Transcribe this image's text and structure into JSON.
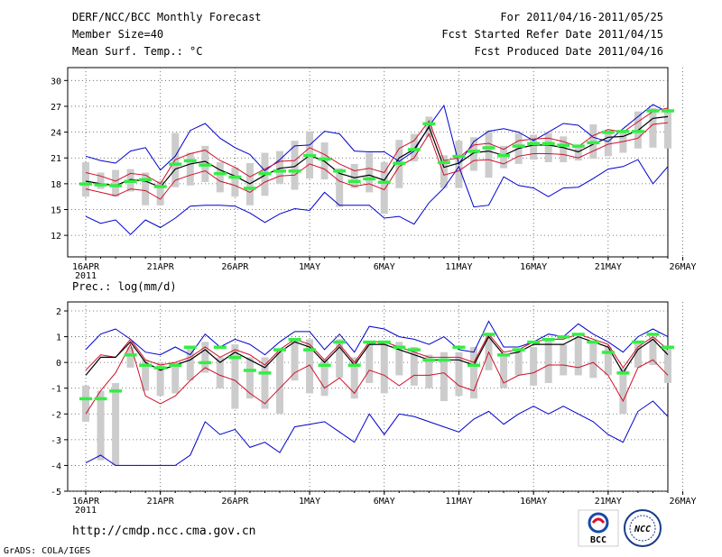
{
  "header": {
    "title": "DERF/NCC/BCC Monthly Forecast",
    "member_size": "Member Size=40",
    "variable_top": "Mean Surf. Temp.: °C",
    "period": "For 2011/04/16-2011/05/25",
    "started": "Fcst Started Refer Date 2011/04/15",
    "produced": "Fcst Produced Date 2011/04/16"
  },
  "footer": {
    "url": "http://cmdp.ncc.cma.gov.cn",
    "credit": "GrADS: COLA/IGES",
    "logo_bcc": "BCC",
    "logo_ncc": "NCC"
  },
  "colors": {
    "ensemble_mean": "#000000",
    "spread": "#d0102a",
    "extreme": "#0000cc",
    "box": "#cccccc",
    "median": "#33ee44"
  },
  "chart_data": [
    {
      "type": "line",
      "title": "Mean Surf. Temp.: °C",
      "xlabel": "",
      "ylabel": "",
      "ylim": [
        9.5,
        31.5
      ],
      "yticks": [
        12,
        15,
        18,
        21,
        24,
        27,
        30
      ],
      "xticks": [
        "16APR",
        "21APR",
        "26APR",
        "1MAY",
        "6MAY",
        "11MAY",
        "16MAY",
        "21MAY",
        "26MAY"
      ],
      "xyear": "2011",
      "days": 40,
      "series": [
        {
          "name": "max",
          "values": [
            14.2,
            13.4,
            13.8,
            12.1,
            13.8,
            12.9,
            14.0,
            15.4,
            15.5,
            15.5,
            15.4,
            14.6,
            13.5,
            14.5,
            15.1,
            14.9,
            17.0,
            15.5,
            15.5,
            15.5,
            14.0,
            14.2,
            13.3,
            15.8,
            17.5,
            20.0,
            15.3,
            15.5,
            18.8,
            17.8,
            17.5,
            16.5,
            17.5,
            17.6,
            18.6,
            19.7,
            20.0,
            20.8,
            18.0,
            20.0
          ]
        },
        {
          "name": "max_top",
          "values": [
            21.2,
            20.7,
            20.4,
            21.8,
            22.2,
            19.6,
            21.2,
            24.2,
            25.0,
            23.3,
            22.2,
            21.4,
            19.5,
            20.8,
            22.4,
            22.5,
            24.1,
            23.8,
            21.8,
            21.7,
            21.7,
            20.6,
            21.8,
            24.7,
            27.1,
            20.3,
            22.9,
            24.1,
            24.4,
            24.0,
            23.0,
            24.0,
            25.0,
            24.8,
            23.4,
            22.9,
            24.4,
            25.8,
            27.2,
            26.3
          ]
        },
        {
          "name": "spread_high",
          "values": [
            19.3,
            18.9,
            18.3,
            19.2,
            19.0,
            18.0,
            20.8,
            21.5,
            21.9,
            20.7,
            19.9,
            18.8,
            19.7,
            20.6,
            20.7,
            22.2,
            21.4,
            20.3,
            19.5,
            19.8,
            19.3,
            22.1,
            23.0,
            25.3,
            20.7,
            21.0,
            22.5,
            22.7,
            22.0,
            23.0,
            23.2,
            23.3,
            22.9,
            22.3,
            23.6,
            24.3,
            24.0,
            25.2,
            26.4,
            26.8
          ]
        },
        {
          "name": "mean",
          "values": [
            18.3,
            18.0,
            17.8,
            18.5,
            18.3,
            17.6,
            19.7,
            20.3,
            20.6,
            19.6,
            18.9,
            18.0,
            19.0,
            19.8,
            20.0,
            21.3,
            20.6,
            19.2,
            18.7,
            19.0,
            18.4,
            21.0,
            22.0,
            24.6,
            19.9,
            20.4,
            21.6,
            21.8,
            21.3,
            22.1,
            22.5,
            22.5,
            22.2,
            21.7,
            22.6,
            23.4,
            23.5,
            24.2,
            25.6,
            25.8
          ]
        },
        {
          "name": "spread_low",
          "values": [
            17.4,
            17.0,
            16.6,
            17.4,
            17.2,
            16.2,
            18.4,
            19.0,
            19.5,
            18.3,
            17.8,
            17.0,
            18.2,
            18.9,
            19.0,
            20.3,
            19.7,
            18.3,
            17.7,
            18.0,
            17.3,
            20.0,
            21.0,
            23.8,
            19.0,
            19.5,
            20.7,
            20.8,
            20.3,
            21.2,
            21.5,
            21.5,
            21.4,
            21.0,
            21.8,
            22.6,
            22.9,
            23.3,
            24.9,
            25.1
          ]
        },
        {
          "name": "box_top",
          "values": [
            20.5,
            19.3,
            19.6,
            19.7,
            19.3,
            18.3,
            23.9,
            21.6,
            22.4,
            20.5,
            19.9,
            20.4,
            21.6,
            21.8,
            23.0,
            24.1,
            22.8,
            19.8,
            20.3,
            21.6,
            20.5,
            23.1,
            23.8,
            25.8,
            21.3,
            23.0,
            23.4,
            24.2,
            22.4,
            23.9,
            23.7,
            23.9,
            23.5,
            22.4,
            24.9,
            24.1,
            24.0,
            26.4,
            26.8,
            26.5
          ]
        },
        {
          "name": "box_bottom",
          "values": [
            16.5,
            17.4,
            16.5,
            17.1,
            15.5,
            15.5,
            17.6,
            17.8,
            18.2,
            17.0,
            16.5,
            15.5,
            16.6,
            18.0,
            17.3,
            18.6,
            18.5,
            15.3,
            17.5,
            17.0,
            14.5,
            17.5,
            20.6,
            23.4,
            17.5,
            17.5,
            19.5,
            18.7,
            19.8,
            20.3,
            20.8,
            20.5,
            20.5,
            20.7,
            20.9,
            21.2,
            21.6,
            22.1,
            22.2,
            22.1
          ]
        },
        {
          "name": "median",
          "values": [
            18.0,
            17.9,
            17.8,
            18.3,
            18.5,
            17.7,
            20.3,
            20.7,
            20.2,
            19.2,
            18.8,
            17.5,
            19.2,
            19.5,
            19.5,
            21.3,
            20.9,
            19.5,
            18.3,
            18.6,
            18.2,
            20.4,
            22.0,
            25.0,
            20.5,
            21.2,
            21.8,
            22.2,
            21.3,
            22.4,
            22.7,
            22.7,
            22.5,
            22.4,
            22.8,
            24.0,
            24.1,
            24.1,
            26.5,
            26.5
          ]
        }
      ]
    },
    {
      "type": "line",
      "title": "Prec.: log(mm/d)",
      "xlabel": "",
      "ylabel": "",
      "ylim": [
        -5,
        2.35
      ],
      "yticks": [
        -5,
        -4,
        -3,
        -2,
        -1,
        0,
        1,
        2
      ],
      "xticks": [
        "16APR",
        "21APR",
        "26APR",
        "1MAY",
        "6MAY",
        "11MAY",
        "16MAY",
        "21MAY",
        "26MAY"
      ],
      "xyear": "2011",
      "days": 40,
      "series": [
        {
          "name": "min",
          "values": [
            -3.9,
            -3.6,
            -4.0,
            -4.0,
            -4.0,
            -4.0,
            -4.0,
            -3.6,
            -2.3,
            -2.8,
            -2.6,
            -3.3,
            -3.1,
            -3.5,
            -2.5,
            -2.4,
            -2.3,
            -2.7,
            -3.1,
            -2.0,
            -2.8,
            -2.0,
            -2.1,
            -2.3,
            -2.5,
            -2.7,
            -2.2,
            -1.9,
            -2.4,
            -2.0,
            -1.7,
            -2.0,
            -1.7,
            -2.0,
            -2.3,
            -2.8,
            -3.1,
            -1.9,
            -1.5,
            -2.1
          ]
        },
        {
          "name": "max",
          "values": [
            0.5,
            1.1,
            1.3,
            0.9,
            0.4,
            0.3,
            0.6,
            0.3,
            1.1,
            0.6,
            0.9,
            0.7,
            0.3,
            0.8,
            1.2,
            1.2,
            0.5,
            1.1,
            0.4,
            1.4,
            1.3,
            1.0,
            0.9,
            0.7,
            1.0,
            0.5,
            0.4,
            1.6,
            0.6,
            0.6,
            0.8,
            1.1,
            1.0,
            1.5,
            1.1,
            0.8,
            0.4,
            1.0,
            1.3,
            1.0
          ]
        },
        {
          "name": "spread_high",
          "values": [
            -0.3,
            0.3,
            0.2,
            0.9,
            0.1,
            -0.1,
            0.0,
            0.2,
            0.6,
            0.2,
            0.5,
            0.3,
            -0.1,
            0.5,
            0.9,
            0.7,
            0.1,
            0.7,
            0.0,
            0.8,
            0.8,
            0.6,
            0.4,
            0.2,
            0.2,
            0.2,
            0.0,
            1.1,
            0.4,
            0.5,
            0.8,
            0.9,
            0.9,
            1.1,
            0.9,
            0.7,
            -0.2,
            0.6,
            1.0,
            0.5
          ]
        },
        {
          "name": "mean",
          "values": [
            -0.5,
            0.2,
            0.2,
            0.8,
            0.0,
            -0.3,
            -0.1,
            0.1,
            0.5,
            0.0,
            0.4,
            0.1,
            -0.2,
            0.4,
            0.8,
            0.6,
            0.0,
            0.6,
            -0.1,
            0.7,
            0.7,
            0.5,
            0.3,
            0.1,
            0.1,
            0.1,
            -0.1,
            1.0,
            0.3,
            0.4,
            0.7,
            0.7,
            0.7,
            1.0,
            0.8,
            0.6,
            -0.4,
            0.5,
            0.9,
            0.3
          ]
        },
        {
          "name": "spread_low",
          "values": [
            -2.0,
            -1.1,
            -0.4,
            0.7,
            -1.3,
            -1.6,
            -1.3,
            -0.7,
            -0.2,
            -0.5,
            -0.7,
            -1.2,
            -1.6,
            -1.0,
            -0.4,
            -0.1,
            -1.0,
            -0.6,
            -1.2,
            -0.3,
            -0.5,
            -0.9,
            -0.5,
            -0.5,
            -0.4,
            -0.9,
            -1.1,
            0.4,
            -0.8,
            -0.5,
            -0.4,
            -0.1,
            -0.1,
            -0.2,
            0.0,
            -0.5,
            -1.5,
            -0.2,
            0.1,
            -0.5
          ]
        },
        {
          "name": "box_top",
          "values": [
            -0.9,
            -1.1,
            -0.8,
            0.6,
            0.1,
            0.0,
            0.0,
            0.6,
            0.8,
            0.2,
            0.7,
            0.2,
            0.2,
            0.4,
            0.9,
            0.9,
            0.1,
            0.9,
            0.2,
            0.7,
            0.8,
            0.8,
            0.6,
            0.3,
            0.4,
            0.4,
            0.6,
            1.1,
            0.3,
            0.5,
            0.6,
            0.9,
            0.7,
            1.0,
            0.8,
            0.6,
            -0.2,
            0.8,
            1.0,
            0.6
          ]
        },
        {
          "name": "box_bottom",
          "values": [
            -2.3,
            -3.8,
            -4.0,
            -0.2,
            -1.1,
            -1.3,
            -1.2,
            -0.7,
            -0.4,
            -1.0,
            -1.8,
            -1.4,
            -1.8,
            -2.0,
            -0.7,
            -1.2,
            -1.3,
            -0.6,
            -1.4,
            -0.8,
            -1.2,
            -0.5,
            -0.9,
            -1.0,
            -1.5,
            -1.3,
            -1.4,
            -0.3,
            -1.0,
            -0.5,
            -0.9,
            -0.8,
            -0.5,
            -0.5,
            -0.6,
            -0.5,
            -2.0,
            -0.2,
            -0.1,
            -0.8
          ]
        },
        {
          "name": "median",
          "values": [
            -1.4,
            -1.4,
            -1.1,
            0.3,
            -0.1,
            -0.2,
            -0.1,
            0.6,
            0.0,
            0.6,
            0.2,
            -0.3,
            -0.4,
            0.5,
            0.9,
            0.5,
            -0.1,
            0.8,
            -0.1,
            0.8,
            0.8,
            0.6,
            0.5,
            0.1,
            0.1,
            0.6,
            -0.1,
            1.1,
            0.3,
            0.5,
            0.8,
            0.9,
            1.0,
            1.1,
            0.8,
            0.4,
            -0.4,
            0.8,
            1.1,
            0.6
          ]
        }
      ]
    }
  ]
}
